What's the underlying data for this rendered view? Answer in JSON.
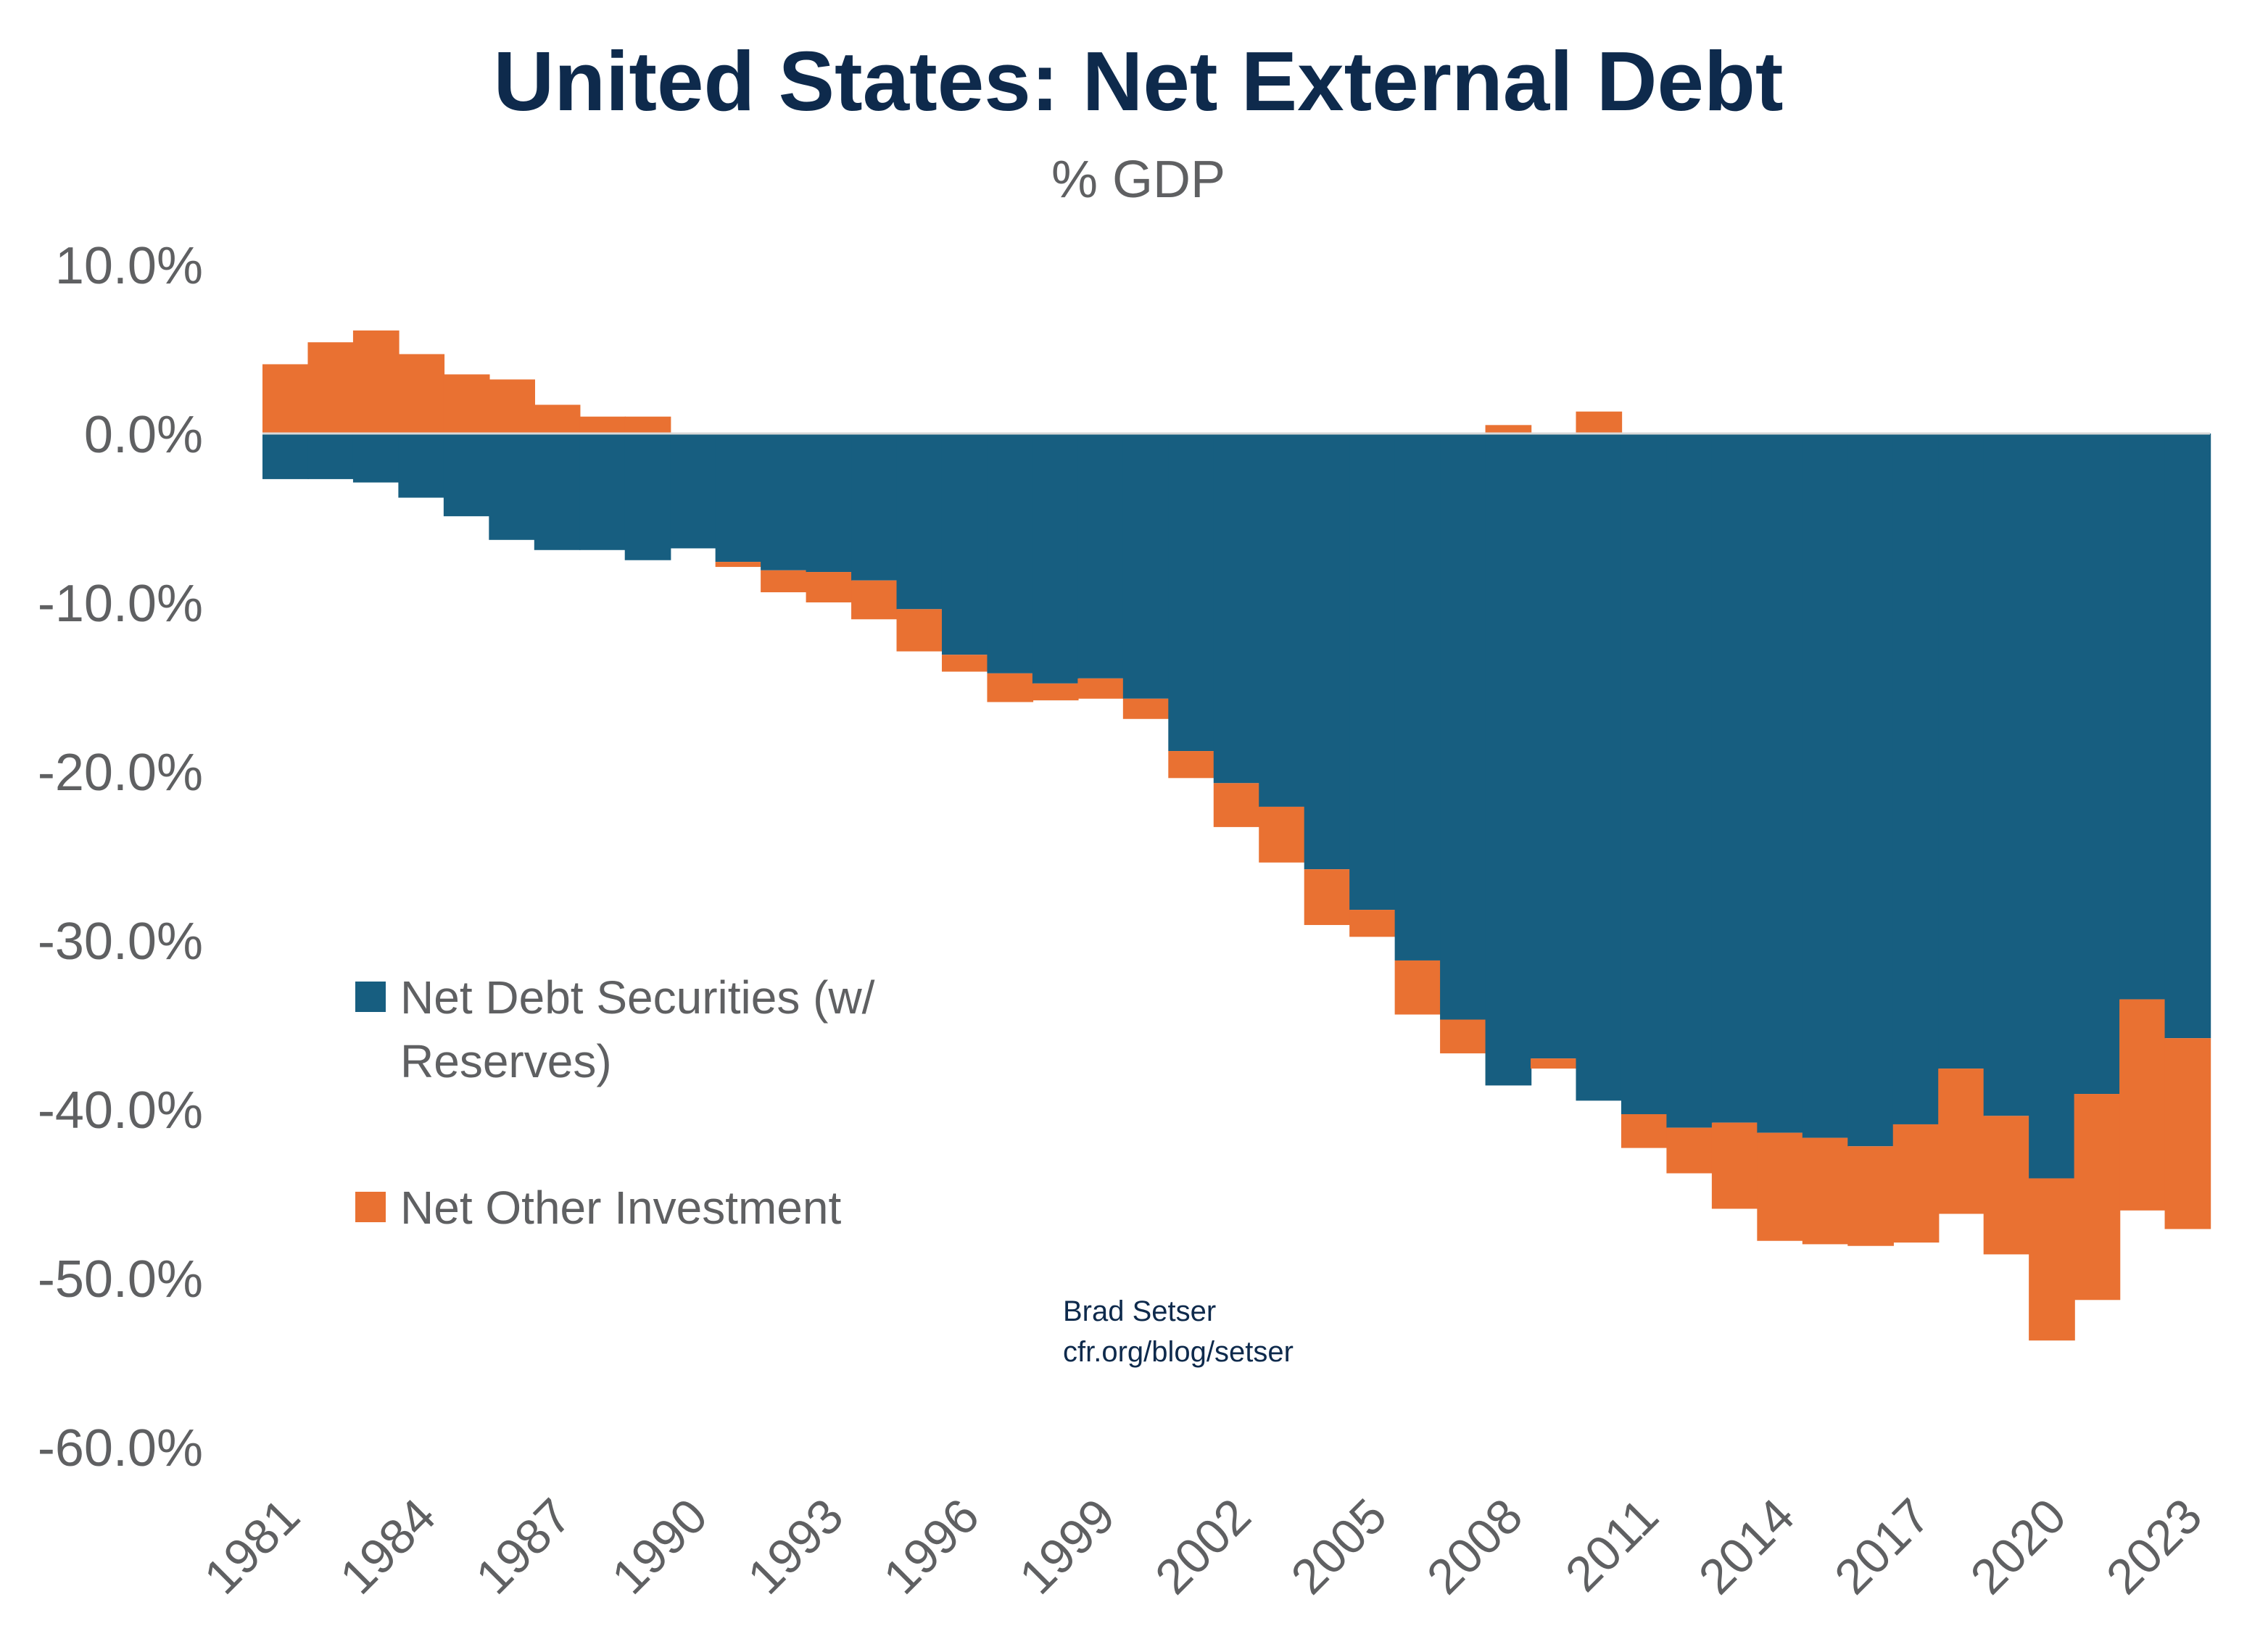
{
  "chart_data": {
    "type": "bar",
    "stacked": true,
    "title": "United States: Net External Debt",
    "subtitle": "% GDP",
    "xlabel": "",
    "ylabel": "",
    "ylim": [
      -60,
      10
    ],
    "y_ticks": [
      10,
      0,
      -10,
      -20,
      -30,
      -40,
      -50,
      -60
    ],
    "y_tick_labels": [
      "10.0%",
      "0.0%",
      "-10.0%",
      "-20.0%",
      "-30.0%",
      "-40.0%",
      "-50.0%",
      "-60.0%"
    ],
    "x_tick_labels": [
      "1981",
      "1984",
      "1987",
      "1990",
      "1993",
      "1996",
      "1999",
      "2002",
      "2005",
      "2008",
      "2011",
      "2014",
      "2017",
      "2020",
      "2023"
    ],
    "grid": false,
    "legend_placement": "center-left",
    "categories": [
      1981,
      1982,
      1983,
      1984,
      1985,
      1986,
      1987,
      1988,
      1989,
      1990,
      1991,
      1992,
      1993,
      1994,
      1995,
      1996,
      1997,
      1998,
      1999,
      2000,
      2001,
      2002,
      2003,
      2004,
      2005,
      2006,
      2007,
      2008,
      2009,
      2010,
      2011,
      2012,
      2013,
      2014,
      2015,
      2016,
      2017,
      2018,
      2019,
      2020,
      2021,
      2022,
      2023
    ],
    "series": [
      {
        "name": "Net Debt Securities (w/ Reserves)",
        "color": "#175e80",
        "values": [
          -2.7,
          -2.7,
          -2.9,
          -3.8,
          -4.9,
          -6.3,
          -6.9,
          -6.9,
          -7.5,
          -6.8,
          -7.6,
          -8.1,
          -8.2,
          -8.7,
          -10.4,
          -13.1,
          -14.2,
          -14.8,
          -14.5,
          -15.7,
          -18.8,
          -20.7,
          -22.1,
          -25.8,
          -28.2,
          -31.2,
          -34.7,
          -38.6,
          -37.0,
          -39.5,
          -40.3,
          -41.1,
          -40.8,
          -41.4,
          -41.7,
          -42.2,
          -40.9,
          -37.6,
          -40.4,
          -44.1,
          -39.1,
          -33.5,
          -35.8
        ]
      },
      {
        "name": "Net Other Investment",
        "color": "#e97132",
        "values": [
          4.1,
          5.4,
          6.1,
          4.7,
          3.5,
          3.2,
          1.7,
          1.0,
          1.0,
          0.0,
          -0.3,
          -1.3,
          -1.8,
          -2.3,
          -2.5,
          -1.0,
          -1.7,
          -1.0,
          -1.2,
          -1.2,
          -1.6,
          -2.6,
          -3.3,
          -3.3,
          -1.6,
          -3.2,
          -2.0,
          0.5,
          -0.6,
          1.3,
          -2.0,
          -2.7,
          -5.1,
          -6.4,
          -6.3,
          -5.9,
          -7.0,
          -8.6,
          -8.2,
          -9.6,
          -12.2,
          -12.5,
          -11.3
        ]
      }
    ],
    "annotation": [
      "Brad Setser",
      "cfr.org/blog/setser"
    ]
  },
  "colors": {
    "title": "#0e2a4c",
    "axis_text": "#5f6062",
    "zero_line": "#d9d9d9"
  }
}
